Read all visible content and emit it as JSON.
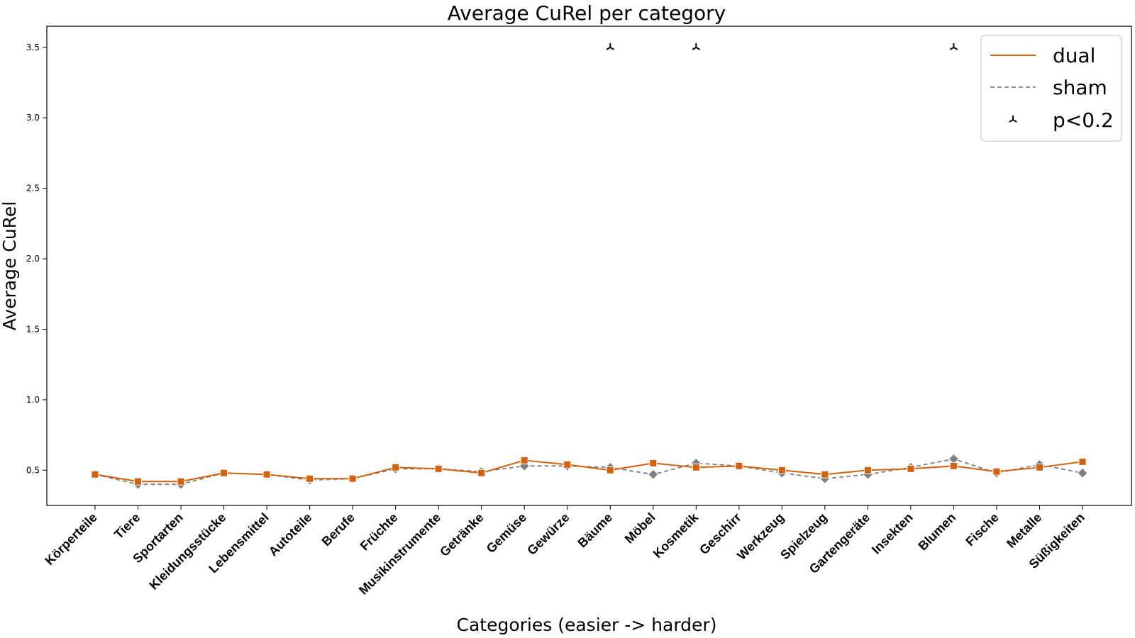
{
  "chart_data": {
    "type": "line",
    "title": "Average CuRel per category",
    "xlabel": "Categories (easier -> harder)",
    "ylabel": "Average CuRel",
    "ylim": [
      0.25,
      3.65
    ],
    "yticks": [
      "0.5",
      "1.0",
      "1.5",
      "2.0",
      "2.5",
      "3.0",
      "3.5"
    ],
    "categories": [
      "Körperteile",
      "Tiere",
      "Sportarten",
      "Kleidungsstücke",
      "Lebensmittel",
      "Autoteile",
      "Berufe",
      "Früchte",
      "Musikinstrumente",
      "Getränke",
      "Gemüse",
      "Gewürze",
      "Bäume",
      "Möbel",
      "Kosmetik",
      "Geschirr",
      "Werkzeug",
      "Spielzeug",
      "Gartengeräte",
      "Insekten",
      "Blumen",
      "Fische",
      "Metalle",
      "Süßigkeiten"
    ],
    "series": [
      {
        "name": "dual",
        "color": "#d2620e",
        "style": "solid",
        "marker": "square",
        "values": [
          0.47,
          0.42,
          0.42,
          0.48,
          0.47,
          0.44,
          0.44,
          0.52,
          0.51,
          0.48,
          0.57,
          0.54,
          0.5,
          0.55,
          0.52,
          0.53,
          0.5,
          0.47,
          0.5,
          0.51,
          0.53,
          0.49,
          0.52,
          0.56
        ]
      },
      {
        "name": "sham",
        "color": "#7f7f7f",
        "style": "dashed",
        "marker": "diamond",
        "values": [
          0.47,
          0.4,
          0.4,
          0.48,
          0.47,
          0.43,
          0.44,
          0.51,
          0.51,
          0.49,
          0.53,
          0.53,
          0.52,
          0.47,
          0.55,
          0.53,
          0.48,
          0.44,
          0.47,
          0.52,
          0.58,
          0.48,
          0.54,
          0.48
        ]
      }
    ],
    "significance": {
      "name": "p<0.2",
      "marker": "tri-up",
      "y": 3.5,
      "categories": [
        "Bäume",
        "Kosmetik",
        "Blumen"
      ]
    },
    "legend": {
      "position": "top-right",
      "entries": [
        "dual",
        "sham",
        "p<0.2"
      ]
    },
    "grid": false
  }
}
